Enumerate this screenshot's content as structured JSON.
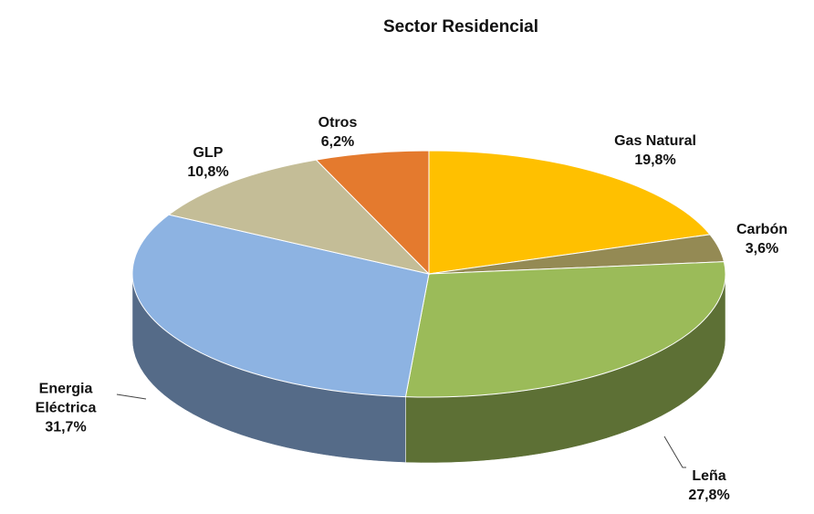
{
  "chart_data": {
    "type": "pie",
    "title": "Sector Residencial",
    "categories": [
      "Gas Natural",
      "Carbón",
      "Leña",
      "Energia Eléctrica",
      "GLP",
      "Otros"
    ],
    "values": [
      19.8,
      3.6,
      27.8,
      31.7,
      10.8,
      6.2
    ],
    "value_labels": [
      "19,8%",
      "3,6%",
      "27,8%",
      "31,7%",
      "10,8%",
      "6,2%"
    ],
    "colors": [
      "#ffc000",
      "#948a54",
      "#9bbb59",
      "#8db3e2",
      "#c4bd97",
      "#e47a2e"
    ]
  }
}
